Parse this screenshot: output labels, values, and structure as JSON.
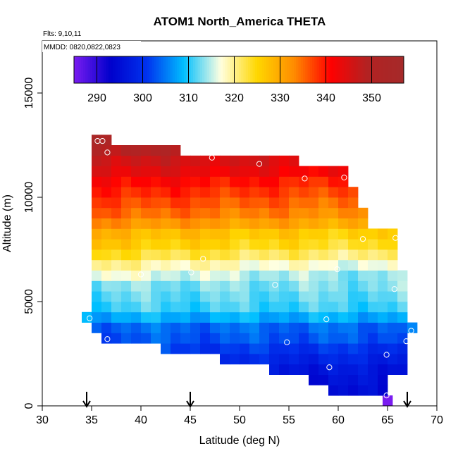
{
  "chart_data": {
    "type": "heatmap",
    "title": "ATOM1 North_America THETA",
    "flights_label": "Flts: 9,10,11",
    "dates_label": "MMDD: 0820,0822,0823",
    "xlabel": "Latitude (deg N)",
    "ylabel": "Altitude (m)",
    "xlim": [
      30,
      70
    ],
    "ylim": [
      0,
      17500
    ],
    "x_ticks": [
      "30",
      "35",
      "40",
      "45",
      "50",
      "55",
      "60",
      "65",
      "70"
    ],
    "y_ticks": [
      "0",
      "5000",
      "10000",
      "15000"
    ],
    "colorbar": {
      "min": 285,
      "max": 357,
      "ticks": [
        "290",
        "300",
        "310",
        "320",
        "330",
        "340",
        "350"
      ],
      "stops": [
        "#7a1cf0",
        "#0000cc",
        "#0033ee",
        "#00bfff",
        "#ffffe0",
        "#ffd700",
        "#ff8c00",
        "#ff0000",
        "#b22222",
        "#a52a2a"
      ]
    },
    "arrows_latitude": [
      34.5,
      45,
      67
    ],
    "grid": false,
    "lat_bin_width": 1,
    "alt_bin_height": 500,
    "levels": [
      {
        "alt": 0,
        "lat_min": 64.5,
        "lat_max": 65.5,
        "theta": 286
      },
      {
        "alt": 500,
        "lat_min": 59,
        "lat_max": 65,
        "theta": 295
      },
      {
        "alt": 1000,
        "lat_min": 57,
        "lat_max": 65,
        "theta": 296
      },
      {
        "alt": 1500,
        "lat_min": 53,
        "lat_max": 67,
        "theta": 297
      },
      {
        "alt": 2000,
        "lat_min": 48,
        "lat_max": 67,
        "theta": 299
      },
      {
        "alt": 2500,
        "lat_min": 42,
        "lat_max": 67,
        "theta": 301
      },
      {
        "alt": 3000,
        "lat_min": 36,
        "lat_max": 67,
        "theta": 303
      },
      {
        "alt": 3500,
        "lat_min": 35,
        "lat_max": 68,
        "theta": 304
      },
      {
        "alt": 4000,
        "lat_min": 34,
        "lat_max": 67,
        "theta": 308
      },
      {
        "alt": 4500,
        "lat_min": 35,
        "lat_max": 67,
        "theta": 311
      },
      {
        "alt": 5000,
        "lat_min": 35,
        "lat_max": 67,
        "theta": 312
      },
      {
        "alt": 5500,
        "lat_min": 35,
        "lat_max": 67,
        "theta": 313
      },
      {
        "alt": 6000,
        "lat_min": 35,
        "lat_max": 67,
        "theta": 315
      },
      {
        "alt": 6500,
        "lat_min": 35,
        "lat_max": 66,
        "theta": 318
      },
      {
        "alt": 7000,
        "lat_min": 35,
        "lat_max": 66,
        "theta": 322
      },
      {
        "alt": 7500,
        "lat_min": 35,
        "lat_max": 66,
        "theta": 325
      },
      {
        "alt": 8000,
        "lat_min": 35,
        "lat_max": 66,
        "theta": 327
      },
      {
        "alt": 8500,
        "lat_min": 35,
        "lat_max": 63,
        "theta": 331
      },
      {
        "alt": 9000,
        "lat_min": 35,
        "lat_max": 63,
        "theta": 334
      },
      {
        "alt": 9500,
        "lat_min": 35,
        "lat_max": 62,
        "theta": 336
      },
      {
        "alt": 10000,
        "lat_min": 35,
        "lat_max": 62,
        "theta": 338
      },
      {
        "alt": 10500,
        "lat_min": 35,
        "lat_max": 61,
        "theta": 340
      },
      {
        "alt": 11000,
        "lat_min": 35,
        "lat_max": 61,
        "theta": 343
      },
      {
        "alt": 11500,
        "lat_min": 35,
        "lat_max": 56,
        "theta": 345
      },
      {
        "alt": 12000,
        "lat_min": 35,
        "lat_max": 44,
        "theta": 348
      },
      {
        "alt": 12500,
        "lat_min": 35,
        "lat_max": 37,
        "theta": 352
      }
    ],
    "sample_points": [
      {
        "lat": 35.6,
        "alt": 12700
      },
      {
        "lat": 36.1,
        "alt": 12700
      },
      {
        "lat": 36.6,
        "alt": 12150
      },
      {
        "lat": 47.2,
        "alt": 11900
      },
      {
        "lat": 52.0,
        "alt": 11600
      },
      {
        "lat": 56.6,
        "alt": 10900
      },
      {
        "lat": 60.6,
        "alt": 10950
      },
      {
        "lat": 62.5,
        "alt": 8000
      },
      {
        "lat": 65.8,
        "alt": 8050
      },
      {
        "lat": 46.3,
        "alt": 7050
      },
      {
        "lat": 59.9,
        "alt": 6550
      },
      {
        "lat": 45.1,
        "alt": 6400
      },
      {
        "lat": 40.0,
        "alt": 6300
      },
      {
        "lat": 53.6,
        "alt": 5800
      },
      {
        "lat": 65.7,
        "alt": 5600
      },
      {
        "lat": 34.8,
        "alt": 4200
      },
      {
        "lat": 58.8,
        "alt": 4150
      },
      {
        "lat": 67.4,
        "alt": 3600
      },
      {
        "lat": 36.6,
        "alt": 3200
      },
      {
        "lat": 54.8,
        "alt": 3050
      },
      {
        "lat": 66.9,
        "alt": 3100
      },
      {
        "lat": 64.9,
        "alt": 2450
      },
      {
        "lat": 59.1,
        "alt": 1850
      },
      {
        "lat": 64.9,
        "alt": 500
      }
    ]
  }
}
